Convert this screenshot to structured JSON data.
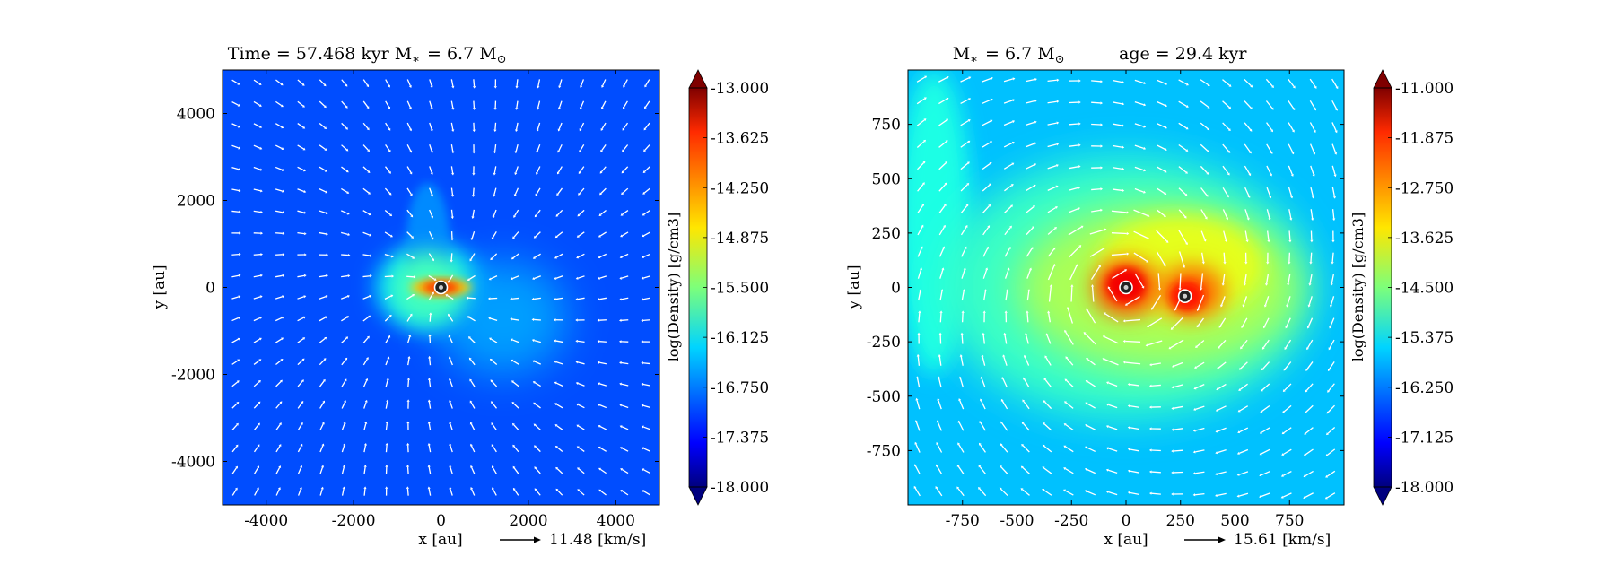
{
  "chart_data": [
    {
      "type": "heatmap",
      "title": "Time = 57.468 kyr    M$_*$ = 6.7 M$_\\odot$",
      "title_text": "Time = 57.468 kyr    M",
      "title_mass": "= 6.7 M",
      "xlabel": "x [au]",
      "ylabel": "y [au]",
      "xlim": [
        -5000,
        5000
      ],
      "ylim": [
        -5000,
        5000
      ],
      "xticks": [
        -4000,
        -2000,
        0,
        2000,
        4000
      ],
      "xtick_labels": [
        "-4000",
        "-2000",
        "0",
        "2000",
        "4000"
      ],
      "yticks": [
        4000,
        2000,
        0,
        -2000,
        -4000
      ],
      "ytick_labels": [
        "4000",
        "2000",
        "0",
        "-2000",
        "-4000"
      ],
      "colorbar": {
        "label": "log(Density) [g/cm3]",
        "min": -18.0,
        "max": -13.0,
        "ticks": [
          -13.0,
          -13.625,
          -14.25,
          -14.875,
          -15.5,
          -16.125,
          -16.75,
          -17.375,
          -18.0
        ],
        "tick_labels": [
          "-13.000",
          "-13.625",
          "-14.250",
          "-14.875",
          "-15.500",
          "-16.125",
          "-16.750",
          "-17.375",
          "-18.000"
        ]
      },
      "velocity_key": {
        "value": 11.48,
        "label": "11.48 [km/s]"
      },
      "sinks": [
        {
          "x": 0,
          "y": 0
        }
      ],
      "background_level": -17.0,
      "structures": [
        {
          "x": -250,
          "y": 0,
          "rx": 1250,
          "ry": 1000,
          "level": -16.3
        },
        {
          "x": 1400,
          "y": -700,
          "rx": 1500,
          "ry": 1300,
          "level": -16.6
        },
        {
          "x": -300,
          "y": 1000,
          "rx": 500,
          "ry": 1400,
          "level": -16.7
        },
        {
          "x": -300,
          "y": 0,
          "rx": 900,
          "ry": 850,
          "level": -15.8
        },
        {
          "x": 0,
          "y": 0,
          "rx": 700,
          "ry": 200,
          "level": -14.6
        },
        {
          "x": 0,
          "y": 0,
          "rx": 420,
          "ry": 130,
          "level": -13.8
        }
      ]
    },
    {
      "type": "heatmap",
      "title": "M$_*$ = 6.7 M$_\\odot$    age = 29.4 kyr",
      "title_text": "M",
      "title_mass": "= 6.7 M",
      "title_age": "age = 29.4 kyr",
      "xlabel": "x [au]",
      "ylabel": "y [au]",
      "xlim": [
        -1000,
        1000
      ],
      "ylim": [
        -1000,
        1000
      ],
      "xticks": [
        -750,
        -500,
        -250,
        0,
        250,
        500,
        750
      ],
      "xtick_labels": [
        "-750",
        "-500",
        "-250",
        "0",
        "250",
        "500",
        "750"
      ],
      "yticks": [
        750,
        500,
        250,
        0,
        -250,
        -500,
        -750
      ],
      "ytick_labels": [
        "750",
        "500",
        "250",
        "0",
        "-250",
        "-500",
        "-750"
      ],
      "colorbar": {
        "label": "log(Density) [g/cm3]",
        "min": -18.0,
        "max": -11.0,
        "ticks": [
          -11.0,
          -11.875,
          -12.75,
          -13.625,
          -14.5,
          -15.375,
          -16.25,
          -17.125,
          -18.0
        ],
        "tick_labels": [
          "-11.000",
          "-11.875",
          "-12.750",
          "-13.625",
          "-14.500",
          "-15.375",
          "-16.250",
          "-17.125",
          "-18.000"
        ]
      },
      "velocity_key": {
        "value": 15.61,
        "label": "15.61 [km/s]"
      },
      "sinks": [
        {
          "x": 0,
          "y": 0
        },
        {
          "x": 270,
          "y": -40
        }
      ],
      "background_level": -15.8,
      "structures": [
        {
          "x": -880,
          "y": 300,
          "rx": 170,
          "ry": 700,
          "level": -15.2
        },
        {
          "x": 0,
          "y": 0,
          "rx": 850,
          "ry": 600,
          "level": -15.0
        },
        {
          "x": 150,
          "y": 0,
          "rx": 650,
          "ry": 380,
          "level": -14.2
        },
        {
          "x": 250,
          "y": 100,
          "rx": 380,
          "ry": 230,
          "level": -13.8
        },
        {
          "x": 0,
          "y": 0,
          "rx": 150,
          "ry": 130,
          "level": -12.4
        },
        {
          "x": 300,
          "y": -20,
          "rx": 150,
          "ry": 120,
          "level": -12.6
        },
        {
          "x": 0,
          "y": 10,
          "rx": 90,
          "ry": 80,
          "level": -11.8
        },
        {
          "x": 280,
          "y": -40,
          "rx": 80,
          "ry": 70,
          "level": -12.0
        }
      ]
    }
  ]
}
